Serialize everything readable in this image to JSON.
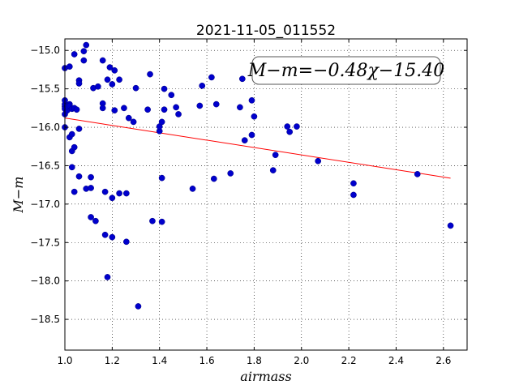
{
  "chart_data": {
    "type": "scatter",
    "title": "2021-11-05_011552",
    "xlabel": "airmass",
    "ylabel": "M−m",
    "xlim": [
      1.0,
      2.7
    ],
    "ylim": [
      -14.85,
      -18.9
    ],
    "y_inverted": true,
    "grid": true,
    "x_ticks": [
      1.0,
      1.2,
      1.4,
      1.6,
      1.8,
      2.0,
      2.2,
      2.4,
      2.6
    ],
    "x_tick_labels": [
      "1.0",
      "1.2",
      "1.4",
      "1.6",
      "1.8",
      "2.0",
      "2.2",
      "2.4",
      "2.6"
    ],
    "y_ticks": [
      -15.0,
      -15.5,
      -16.0,
      -16.5,
      -17.0,
      -17.5,
      -18.0,
      -18.5
    ],
    "y_tick_labels": [
      "−15.0",
      "−15.5",
      "−16.0",
      "−16.5",
      "−17.0",
      "−17.5",
      "−18.0",
      "−18.5"
    ],
    "annotation": "M−m=−0.48χ−15.40",
    "point_color": "#0000cc",
    "fit_color": "#ff0000",
    "fit": {
      "slope": -0.48,
      "intercept": -15.4,
      "x_range": [
        1.0,
        2.63
      ]
    },
    "points": [
      [
        1.0,
        -15.73
      ],
      [
        1.0,
        -15.7
      ],
      [
        1.0,
        -15.76
      ],
      [
        1.0,
        -15.83
      ],
      [
        1.0,
        -15.65
      ],
      [
        1.0,
        -16.0
      ],
      [
        1.0,
        -15.23
      ],
      [
        1.01,
        -15.78
      ],
      [
        1.01,
        -15.72
      ],
      [
        1.01,
        -15.73
      ],
      [
        1.02,
        -15.7
      ],
      [
        1.02,
        -15.72
      ],
      [
        1.02,
        -15.21
      ],
      [
        1.02,
        -16.13
      ],
      [
        1.03,
        -15.76
      ],
      [
        1.03,
        -16.52
      ],
      [
        1.03,
        -16.09
      ],
      [
        1.03,
        -16.31
      ],
      [
        1.04,
        -16.26
      ],
      [
        1.04,
        -15.05
      ],
      [
        1.04,
        -15.75
      ],
      [
        1.04,
        -16.84
      ],
      [
        1.05,
        -15.77
      ],
      [
        1.06,
        -16.02
      ],
      [
        1.06,
        -15.39
      ],
      [
        1.06,
        -15.43
      ],
      [
        1.06,
        -16.64
      ],
      [
        1.08,
        -15.01
      ],
      [
        1.08,
        -15.13
      ],
      [
        1.09,
        -14.93
      ],
      [
        1.09,
        -16.8
      ],
      [
        1.11,
        -16.79
      ],
      [
        1.11,
        -16.65
      ],
      [
        1.11,
        -17.17
      ],
      [
        1.12,
        -15.49
      ],
      [
        1.13,
        -17.22
      ],
      [
        1.14,
        -15.47
      ],
      [
        1.16,
        -15.69
      ],
      [
        1.16,
        -15.75
      ],
      [
        1.16,
        -15.13
      ],
      [
        1.17,
        -16.84
      ],
      [
        1.17,
        -17.4
      ],
      [
        1.18,
        -15.38
      ],
      [
        1.18,
        -17.95
      ],
      [
        1.19,
        -15.22
      ],
      [
        1.2,
        -15.44
      ],
      [
        1.2,
        -16.92
      ],
      [
        1.2,
        -17.43
      ],
      [
        1.21,
        -15.78
      ],
      [
        1.21,
        -15.26
      ],
      [
        1.23,
        -15.38
      ],
      [
        1.23,
        -16.86
      ],
      [
        1.25,
        -15.75
      ],
      [
        1.26,
        -16.86
      ],
      [
        1.26,
        -17.49
      ],
      [
        1.27,
        -15.88
      ],
      [
        1.29,
        -15.93
      ],
      [
        1.3,
        -15.49
      ],
      [
        1.31,
        -18.33
      ],
      [
        1.35,
        -15.77
      ],
      [
        1.36,
        -15.31
      ],
      [
        1.37,
        -17.22
      ],
      [
        1.4,
        -16.05
      ],
      [
        1.4,
        -15.99
      ],
      [
        1.41,
        -15.93
      ],
      [
        1.41,
        -16.66
      ],
      [
        1.41,
        -17.23
      ],
      [
        1.42,
        -15.5
      ],
      [
        1.42,
        -15.77
      ],
      [
        1.45,
        -15.58
      ],
      [
        1.47,
        -15.74
      ],
      [
        1.48,
        -15.83
      ],
      [
        1.54,
        -16.8
      ],
      [
        1.57,
        -15.72
      ],
      [
        1.58,
        -15.46
      ],
      [
        1.62,
        -15.35
      ],
      [
        1.63,
        -16.67
      ],
      [
        1.64,
        -15.7
      ],
      [
        1.7,
        -16.6
      ],
      [
        1.74,
        -15.74
      ],
      [
        1.75,
        -15.37
      ],
      [
        1.76,
        -16.17
      ],
      [
        1.79,
        -15.65
      ],
      [
        1.79,
        -16.1
      ],
      [
        1.8,
        -15.86
      ],
      [
        1.88,
        -16.56
      ],
      [
        1.89,
        -16.36
      ],
      [
        1.94,
        -15.99
      ],
      [
        1.95,
        -16.06
      ],
      [
        1.98,
        -15.99
      ],
      [
        2.07,
        -16.44
      ],
      [
        2.22,
        -16.73
      ],
      [
        2.22,
        -16.88
      ],
      [
        2.49,
        -16.61
      ],
      [
        2.63,
        -17.28
      ]
    ]
  }
}
